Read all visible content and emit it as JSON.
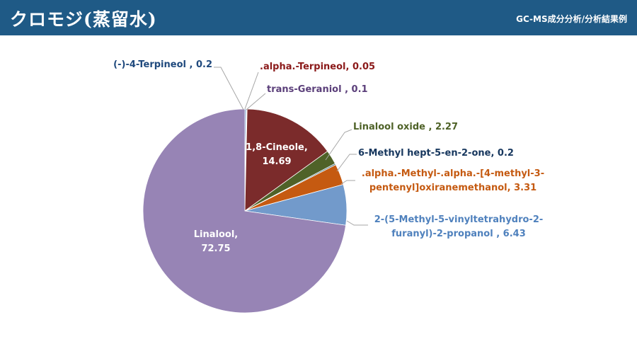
{
  "header": {
    "title": "クロモジ(蒸留水)",
    "subtitle": "GC-MS成分分析/分析結果例"
  },
  "chart_data": {
    "type": "pie",
    "title": "",
    "slices": [
      {
        "label": "(-)-4-Terpineol",
        "value": 0.2,
        "color": "#4f81bd",
        "label_color": "#1f497d",
        "label_lines": [
          "(-)-4-Terpineol , 0.2"
        ]
      },
      {
        "label": ".alpha.-Terpineol",
        "value": 0.05,
        "color": "#c0504d",
        "label_color": "#8b1a1a",
        "label_lines": [
          ".alpha.-Terpineol, 0.05"
        ]
      },
      {
        "label": "trans-Geraniol",
        "value": 0.1,
        "color": "#8064a2",
        "label_color": "#5b3f7a",
        "label_lines": [
          "trans-Geraniol , 0.1"
        ]
      },
      {
        "label": "1,8-Cineole",
        "value": 14.69,
        "color": "#7b2b2b",
        "label_color": "#ffffff",
        "label_lines": [
          "1,8-Cineole,",
          "14.69"
        ]
      },
      {
        "label": "Linalool oxide",
        "value": 2.27,
        "color": "#4f6228",
        "label_color": "#4f6228",
        "label_lines": [
          "Linalool oxide , 2.27"
        ]
      },
      {
        "label": "6-Methyl hept-5-en-2-one",
        "value": 0.2,
        "color": "#215968",
        "label_color": "#17375e",
        "label_lines": [
          "6-Methyl hept-5-en-2-one, 0.2"
        ]
      },
      {
        "label": ".alpha.-Methyl-.alpha.-[4-methyl-3-pentenyl]oxiranemethanol",
        "value": 3.31,
        "color": "#c55a11",
        "label_color": "#c55a11",
        "label_lines": [
          ".alpha.-Methyl-.alpha.-[4-methyl-3-",
          "pentenyl]oxiranemethanol, 3.31"
        ]
      },
      {
        "label": "2-(5-Methyl-5-vinyltetrahydro-2-furanyl)-2-propanol",
        "value": 6.43,
        "color": "#729acb",
        "label_color": "#4f81bd",
        "label_lines": [
          "2-(5-Methyl-5-vinyltetrahydro-2-",
          "furanyl)-2-propanol , 6.43"
        ]
      },
      {
        "label": "Linalool",
        "value": 72.75,
        "color": "#9784b5",
        "label_color": "#ffffff",
        "label_lines": [
          "Linalool,",
          "72.75"
        ]
      }
    ]
  }
}
